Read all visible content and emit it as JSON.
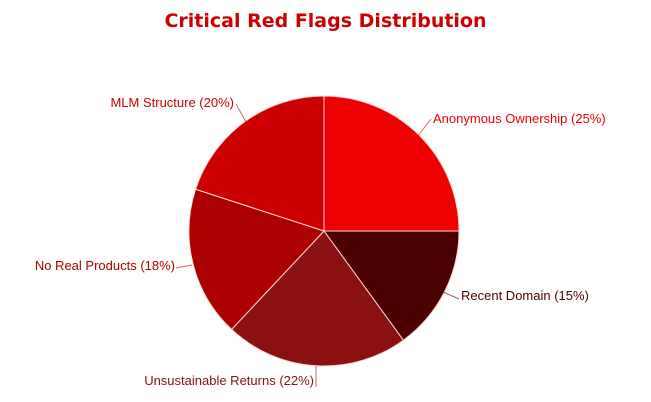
{
  "chart_data": {
    "type": "pie",
    "title": "Critical Red Flags Distribution",
    "categories": [
      "Anonymous Ownership",
      "Recent Domain",
      "Unsustainable Returns",
      "No Real Products",
      "MLM Structure"
    ],
    "values": [
      25,
      15,
      22,
      18,
      20
    ],
    "unit": "%",
    "colors": [
      "#ee0000",
      "#4d0000",
      "#8b1010",
      "#aa0000",
      "#cc0000"
    ],
    "labels": [
      "Anonymous Ownership (25%)",
      "Recent Domain (15%)",
      "Unsustainable Returns (22%)",
      "No Real Products (18%)",
      "MLM Structure (20%)"
    ],
    "start_angle": "12 o'clock",
    "direction": "clockwise",
    "legend": "none (outside labels with leader lines)"
  }
}
